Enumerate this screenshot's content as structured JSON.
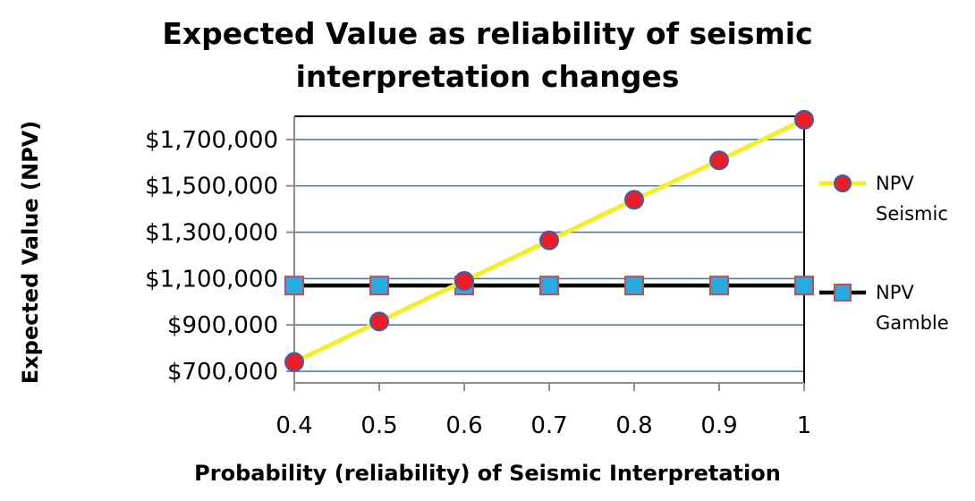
{
  "chart_data": {
    "type": "line",
    "title": "Expected Value as reliability of seismic interpretation changes",
    "title_lines": [
      "Expected Value as reliability of seismic",
      "interpretation changes"
    ],
    "xlabel": "Probability (reliability) of Seismic Interpretation",
    "ylabel": "Expected Value (NPV)",
    "x": [
      0.4,
      0.5,
      0.6,
      0.7,
      0.8,
      0.9,
      1
    ],
    "x_tick_labels": [
      "0.4",
      "0.5",
      "0.6",
      "0.7",
      "0.8",
      "0.9",
      "1"
    ],
    "ylim": [
      650000,
      1800000
    ],
    "y_ticks": [
      700000,
      900000,
      1100000,
      1300000,
      1500000,
      1700000
    ],
    "y_tick_labels": [
      "$700,000",
      "$900,000",
      "$1,100,000",
      "$1,300,000",
      "$1,500,000",
      "$1,700,000"
    ],
    "grid": true,
    "legend_position": "right",
    "series": [
      {
        "name_lines": [
          "NPV",
          "Seismic"
        ],
        "values": [
          740000,
          915000,
          1090000,
          1265000,
          1440000,
          1610000,
          1785000
        ],
        "line_color": "#f2ee2a",
        "marker": "circle",
        "marker_color": "#ee1c24",
        "marker_edge": "#3a5fb0"
      },
      {
        "name_lines": [
          "NPV",
          "Gamble"
        ],
        "values": [
          1070000,
          1070000,
          1070000,
          1070000,
          1070000,
          1070000,
          1070000
        ],
        "line_color": "#000000",
        "marker": "square",
        "marker_color": "#27a9e1",
        "marker_edge": "#c0504d"
      }
    ],
    "gridline_color": "#4a7ebb"
  }
}
